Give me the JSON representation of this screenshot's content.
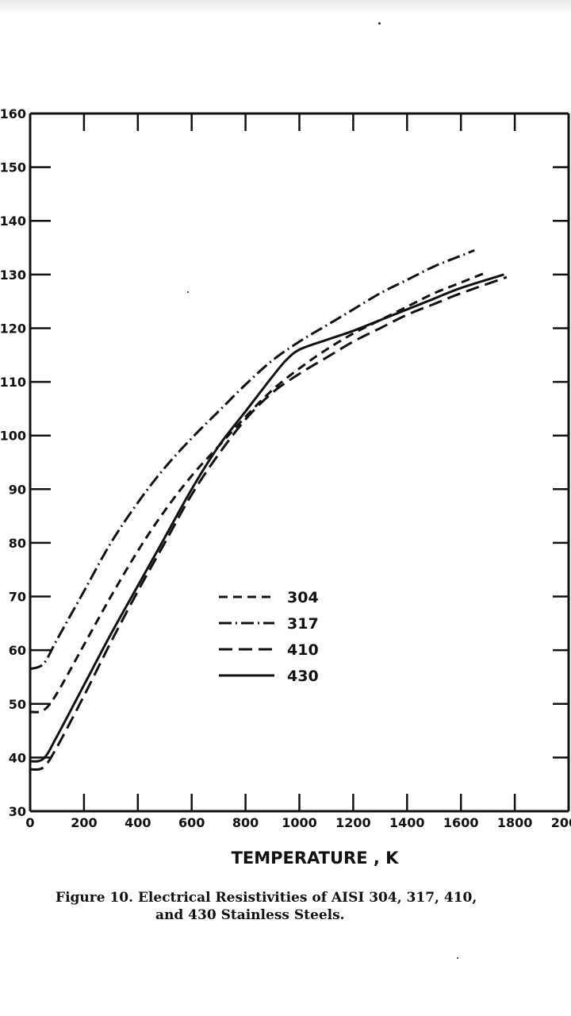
{
  "caption": {
    "line1": "Figure 10.  Electrical Resistivities of AISI 304, 317, 410,",
    "line2": "and 430 Stainless Steels."
  },
  "chart_data": {
    "type": "line",
    "title": "",
    "xlabel": "TEMPERATURE , K",
    "ylabel": "",
    "xlim": [
      0,
      2000
    ],
    "ylim": [
      30,
      160
    ],
    "x_ticks": [
      "0",
      "200",
      "400",
      "600",
      "800",
      "1000",
      "1200",
      "1400",
      "1600",
      "1800",
      "2000"
    ],
    "y_ticks": [
      "30",
      "40",
      "50",
      "60",
      "70",
      "80",
      "90",
      "100",
      "110",
      "120",
      "130",
      "140",
      "150",
      "160"
    ],
    "grid": false,
    "legend_position": "center",
    "series": [
      {
        "name": "304",
        "dash": "11 7",
        "x": [
          0,
          50,
          100,
          200,
          300,
          400,
          500,
          600,
          700,
          800,
          900,
          1000,
          1100,
          1200,
          1300,
          1400,
          1500,
          1600,
          1700
        ],
        "y": [
          48.5,
          48.8,
          52,
          61,
          70,
          78.5,
          86,
          92.5,
          98,
          103.5,
          108.5,
          112.5,
          116,
          119,
          121.5,
          124,
          126.5,
          128.5,
          130.5
        ]
      },
      {
        "name": "317",
        "dash": "16 5 2 5",
        "x": [
          0,
          50,
          100,
          200,
          300,
          400,
          500,
          600,
          700,
          800,
          900,
          1000,
          1100,
          1200,
          1300,
          1400,
          1500,
          1600,
          1650
        ],
        "y": [
          56.5,
          57.5,
          62,
          71,
          80,
          87.5,
          94,
          99.5,
          104.5,
          109.5,
          114,
          117.5,
          120.5,
          123.5,
          126.5,
          129,
          131.5,
          133.5,
          134.5
        ]
      },
      {
        "name": "410",
        "dash": "17 8",
        "x": [
          0,
          50,
          100,
          200,
          300,
          400,
          500,
          600,
          700,
          800,
          900,
          1000,
          1100,
          1200,
          1300,
          1400,
          1500,
          1600,
          1770
        ],
        "y": [
          37.8,
          38.2,
          42,
          51.5,
          61.5,
          71,
          80,
          89,
          96.5,
          103,
          108,
          111.5,
          114.5,
          117.5,
          120,
          122.5,
          124.5,
          126.5,
          129.5
        ]
      },
      {
        "name": "430",
        "dash": "",
        "x": [
          0,
          50,
          100,
          200,
          300,
          400,
          500,
          600,
          700,
          800,
          900,
          950,
          1000,
          1100,
          1200,
          1300,
          1400,
          1500,
          1600,
          1760
        ],
        "y": [
          39.3,
          39.8,
          44,
          53.5,
          63,
          72,
          81,
          90,
          98,
          104.5,
          111,
          114,
          116,
          117.8,
          119.5,
          121.5,
          123.5,
          125.5,
          127.5,
          130
        ]
      }
    ]
  }
}
